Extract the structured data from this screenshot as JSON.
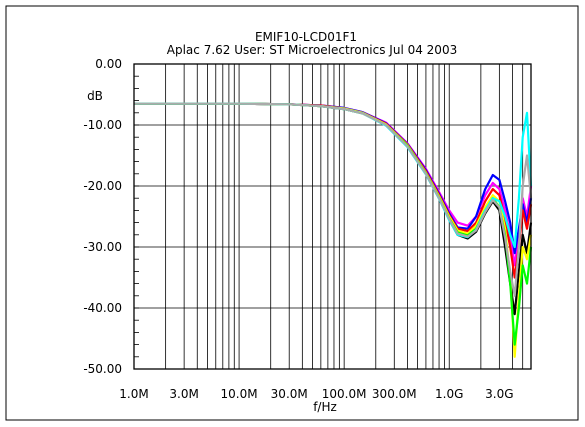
{
  "chart_data": {
    "type": "line",
    "title": "EMIF10-LCD01F1",
    "subtitle": "Aplac 7.62 User: ST Microelectronics  Jul 04 2003",
    "xlabel": "f/Hz",
    "ylabel": "dB",
    "x_scale": "log",
    "xlim": [
      1000000,
      6000000000
    ],
    "ylim": [
      -50,
      0
    ],
    "grid": true,
    "x_ticks": [
      {
        "value": 1000000,
        "label": "1.0M"
      },
      {
        "value": 3000000,
        "label": "3.0M"
      },
      {
        "value": 10000000,
        "label": "10.0M"
      },
      {
        "value": 30000000,
        "label": "30.0M"
      },
      {
        "value": 100000000,
        "label": "100.0M"
      },
      {
        "value": 300000000,
        "label": "300.0M"
      },
      {
        "value": 1000000000,
        "label": "1.0G"
      },
      {
        "value": 3000000000,
        "label": "3.0G"
      }
    ],
    "y_ticks": [
      {
        "value": 0,
        "label": "0.00"
      },
      {
        "value": -10,
        "label": "-10.00"
      },
      {
        "value": -20,
        "label": "-20.00"
      },
      {
        "value": -30,
        "label": "-30.00"
      },
      {
        "value": -40,
        "label": "-40.00"
      },
      {
        "value": -50,
        "label": "-50.00"
      }
    ],
    "series": [
      {
        "color": "#000000",
        "x": [
          1000000,
          10000000,
          30000000,
          60000000,
          100000000,
          150000000,
          250000000,
          400000000,
          600000000,
          800000000,
          1000000000,
          1200000000,
          1500000000,
          1800000000,
          2200000000,
          2600000000,
          3000000000,
          3400000000,
          3800000000,
          4200000000,
          4600000000,
          5000000000,
          5500000000,
          6000000000
        ],
        "y": [
          -6.5,
          -6.5,
          -6.6,
          -6.9,
          -7.4,
          -8.1,
          -10.0,
          -13.5,
          -18.0,
          -22.0,
          -25.5,
          -28.0,
          -28.6,
          -27.5,
          -24.5,
          -22.5,
          -24.0,
          -30.0,
          -36.0,
          -41.0,
          -34.0,
          -28.0,
          -31.0,
          -26.0
        ]
      },
      {
        "color": "#ff00ff",
        "x": [
          1000000,
          10000000,
          30000000,
          60000000,
          100000000,
          150000000,
          250000000,
          400000000,
          600000000,
          800000000,
          1000000000,
          1200000000,
          1500000000,
          1800000000,
          2200000000,
          2600000000,
          3000000000,
          3400000000,
          3800000000,
          4200000000,
          4600000000,
          5000000000,
          5500000000,
          6000000000
        ],
        "y": [
          -6.5,
          -6.5,
          -6.6,
          -6.8,
          -7.2,
          -7.9,
          -9.6,
          -13.0,
          -17.2,
          -21.0,
          -24.0,
          -26.0,
          -26.5,
          -25.0,
          -21.5,
          -19.5,
          -20.5,
          -24.0,
          -28.0,
          -33.0,
          -28.0,
          -22.0,
          -25.0,
          -20.0
        ]
      },
      {
        "color": "#0000ff",
        "x": [
          1000000,
          10000000,
          30000000,
          60000000,
          100000000,
          150000000,
          250000000,
          400000000,
          600000000,
          800000000,
          1000000000,
          1200000000,
          1500000000,
          1800000000,
          2200000000,
          2600000000,
          3000000000,
          3400000000,
          3800000000,
          4200000000,
          4600000000,
          5000000000,
          5500000000,
          6000000000
        ],
        "y": [
          -6.5,
          -6.5,
          -6.6,
          -6.8,
          -7.2,
          -7.9,
          -9.7,
          -13.1,
          -17.4,
          -21.3,
          -24.5,
          -26.8,
          -27.0,
          -25.0,
          -20.5,
          -18.2,
          -19.0,
          -22.5,
          -26.0,
          -31.0,
          -27.0,
          -23.0,
          -26.0,
          -22.0
        ]
      },
      {
        "color": "#ff0000",
        "x": [
          1000000,
          10000000,
          30000000,
          60000000,
          100000000,
          150000000,
          250000000,
          400000000,
          600000000,
          800000000,
          1000000000,
          1200000000,
          1500000000,
          1800000000,
          2200000000,
          2600000000,
          3000000000,
          3400000000,
          3800000000,
          4200000000,
          4600000000,
          5000000000,
          5500000000,
          6000000000
        ],
        "y": [
          -6.5,
          -6.5,
          -6.6,
          -6.8,
          -7.3,
          -8.0,
          -9.8,
          -13.2,
          -17.6,
          -21.5,
          -24.8,
          -27.0,
          -27.4,
          -26.0,
          -22.5,
          -20.5,
          -21.5,
          -25.5,
          -30.0,
          -35.0,
          -30.0,
          -24.0,
          -27.0,
          -23.0
        ]
      },
      {
        "color": "#ffff00",
        "x": [
          1000000,
          10000000,
          30000000,
          60000000,
          100000000,
          150000000,
          250000000,
          400000000,
          600000000,
          800000000,
          1000000000,
          1200000000,
          1500000000,
          1800000000,
          2200000000,
          2600000000,
          3000000000,
          3400000000,
          3800000000,
          4200000000,
          4600000000,
          5000000000,
          5500000000,
          6000000000
        ],
        "y": [
          -6.5,
          -6.5,
          -6.6,
          -6.9,
          -7.3,
          -8.0,
          -9.9,
          -13.3,
          -17.8,
          -21.7,
          -25.0,
          -27.3,
          -27.8,
          -26.5,
          -23.5,
          -21.5,
          -22.5,
          -27.0,
          -35.0,
          -48.0,
          -38.0,
          -30.0,
          -32.0,
          -28.0
        ]
      },
      {
        "color": "#00ff00",
        "x": [
          1000000,
          10000000,
          30000000,
          60000000,
          100000000,
          150000000,
          250000000,
          400000000,
          600000000,
          800000000,
          1000000000,
          1200000000,
          1500000000,
          1800000000,
          2200000000,
          2600000000,
          3000000000,
          3400000000,
          3800000000,
          4200000000,
          4600000000,
          5000000000,
          5500000000,
          6000000000
        ],
        "y": [
          -6.5,
          -6.5,
          -6.6,
          -6.9,
          -7.4,
          -8.1,
          -10.0,
          -13.4,
          -17.9,
          -21.9,
          -25.3,
          -27.6,
          -28.1,
          -27.0,
          -24.0,
          -22.0,
          -23.5,
          -28.0,
          -36.0,
          -46.0,
          -40.0,
          -33.0,
          -36.0,
          -30.0
        ]
      },
      {
        "color": "#00ffff",
        "x": [
          1000000,
          10000000,
          30000000,
          60000000,
          100000000,
          150000000,
          250000000,
          400000000,
          600000000,
          800000000,
          1000000000,
          1200000000,
          1500000000,
          1800000000,
          2200000000,
          2600000000,
          3000000000,
          3400000000,
          3800000000,
          4200000000,
          4600000000,
          5000000000,
          5500000000,
          6000000000
        ],
        "y": [
          -6.5,
          -6.5,
          -6.6,
          -6.9,
          -7.4,
          -8.1,
          -10.1,
          -13.6,
          -18.1,
          -22.1,
          -25.6,
          -28.0,
          -28.4,
          -27.2,
          -24.0,
          -22.0,
          -22.5,
          -25.0,
          -28.0,
          -30.0,
          -22.0,
          -12.0,
          -8.0,
          -20.0
        ]
      },
      {
        "color": "#aaaaaa",
        "x": [
          1000000,
          10000000,
          30000000,
          60000000,
          100000000,
          150000000,
          250000000,
          400000000,
          600000000,
          800000000,
          1000000000,
          1200000000,
          1500000000,
          1800000000,
          2200000000,
          2600000000,
          3000000000,
          3400000000,
          3800000000,
          4200000000,
          4600000000,
          5000000000,
          5500000000,
          6000000000
        ],
        "y": [
          -6.5,
          -6.5,
          -6.6,
          -6.9,
          -7.4,
          -8.1,
          -10.0,
          -13.5,
          -18.0,
          -22.0,
          -25.4,
          -27.8,
          -28.3,
          -27.3,
          -24.3,
          -22.3,
          -23.5,
          -28.5,
          -34.0,
          -38.0,
          -30.0,
          -20.0,
          -15.0,
          -22.0
        ]
      }
    ]
  }
}
